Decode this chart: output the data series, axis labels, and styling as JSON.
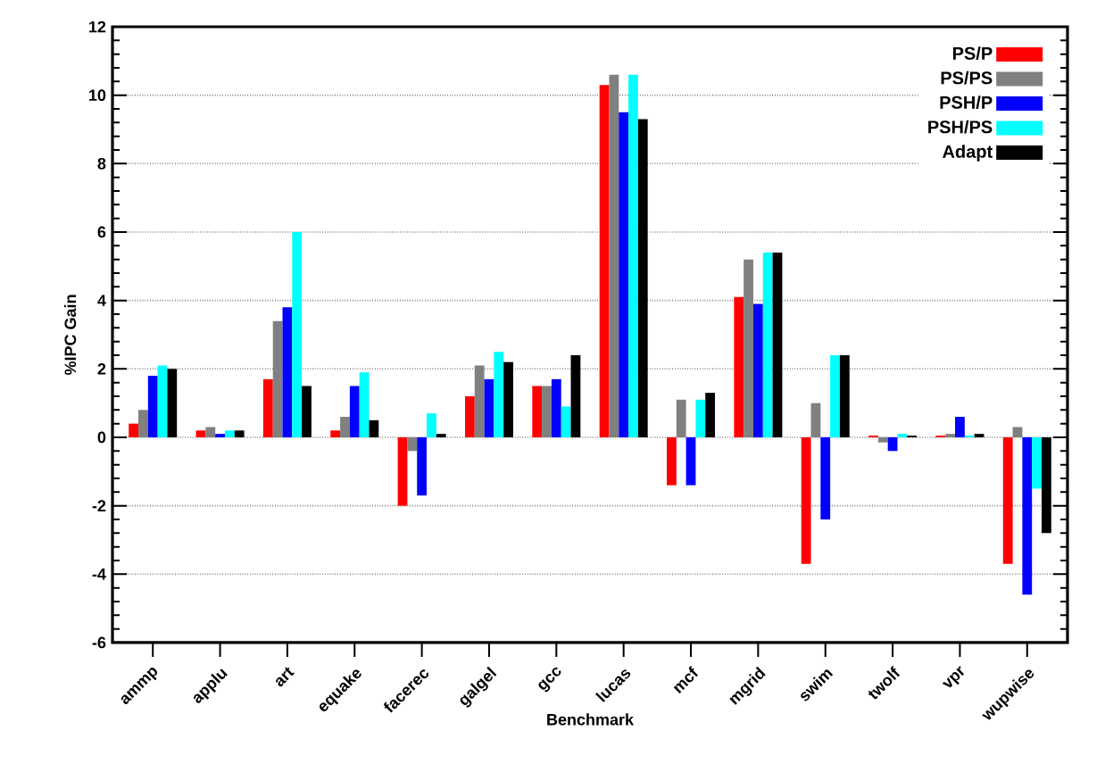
{
  "chart_data": {
    "type": "bar",
    "xlabel": "Benchmark",
    "ylabel": "%IPC Gain",
    "categories": [
      "ammp",
      "applu",
      "art",
      "equake",
      "facerec",
      "galgel",
      "gcc",
      "lucas",
      "mcf",
      "mgrid",
      "swim",
      "twolf",
      "vpr",
      "wupwise"
    ],
    "series": [
      {
        "name": "PS/P",
        "color": "#ff0000",
        "values": [
          0.4,
          0.2,
          1.7,
          0.2,
          -2.0,
          1.2,
          1.5,
          10.3,
          -1.4,
          4.1,
          -3.7,
          0.05,
          0.05,
          -3.7
        ]
      },
      {
        "name": "PS/PS",
        "color": "#808080",
        "values": [
          0.8,
          0.3,
          3.4,
          0.6,
          -0.4,
          2.1,
          1.5,
          10.6,
          1.1,
          5.2,
          1.0,
          -0.15,
          0.1,
          0.3
        ]
      },
      {
        "name": "PSH/P",
        "color": "#0000ff",
        "values": [
          1.8,
          0.1,
          3.8,
          1.5,
          -1.7,
          1.7,
          1.7,
          9.5,
          -1.4,
          3.9,
          -2.4,
          -0.4,
          0.6,
          -4.6
        ]
      },
      {
        "name": "PSH/PS",
        "color": "#00ffff",
        "values": [
          2.1,
          0.2,
          6.0,
          1.9,
          0.7,
          2.5,
          0.9,
          10.6,
          1.1,
          5.4,
          2.4,
          0.1,
          0.05,
          -1.5
        ]
      },
      {
        "name": "Adapt",
        "color": "#000000",
        "values": [
          2.0,
          0.2,
          1.5,
          0.5,
          0.1,
          2.2,
          2.4,
          9.3,
          1.3,
          5.4,
          2.4,
          0.05,
          0.1,
          -2.8
        ]
      }
    ],
    "ylim": [
      -6,
      12
    ],
    "yticks": [
      -6,
      -4,
      -2,
      0,
      2,
      4,
      6,
      8,
      10,
      12
    ],
    "grid": "y",
    "legend": "top right"
  }
}
